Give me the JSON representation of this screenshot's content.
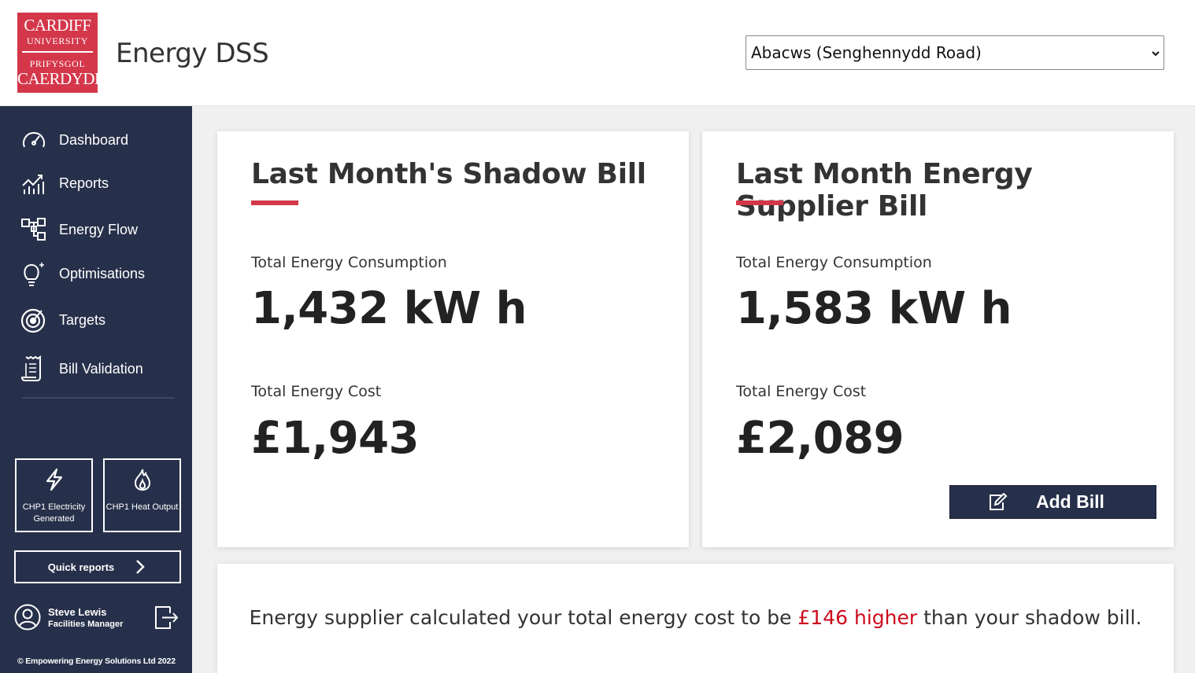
{
  "header": {
    "logo": {
      "line1": "CARDIFF",
      "line2": "UNIVERSITY",
      "line3": "PRIFYSGOL",
      "line4": "CAERDYDD",
      "color": "#d4374a"
    },
    "title": "Energy DSS",
    "building_select": {
      "value": "Abacws (Senghennydd Road)"
    }
  },
  "sidebar": {
    "background": "#27304a",
    "items": [
      {
        "label": "Dashboard",
        "icon": "gauge-icon"
      },
      {
        "label": "Reports",
        "icon": "chart-icon"
      },
      {
        "label": "Energy Flow",
        "icon": "flow-icon"
      },
      {
        "label": "Optimisations",
        "icon": "bulb-icon"
      },
      {
        "label": "Targets",
        "icon": "target-icon"
      },
      {
        "label": "Bill Validation",
        "icon": "receipt-icon"
      }
    ],
    "quick_tiles": [
      {
        "label": "CHP1 Electricity Generated",
        "icon": "lightning-icon"
      },
      {
        "label": "CHP1 Heat Output",
        "icon": "flame-icon"
      }
    ],
    "quick_reports_label": "Quick reports",
    "user": {
      "name": "Steve Lewis",
      "role": "Facilities Manager"
    },
    "copyright": "© Empowering Energy Solutions Ltd 2022"
  },
  "shadow_bill": {
    "title": "Last Month's Shadow Bill",
    "consumption_label": "Total Energy Consumption",
    "consumption_value": "1,432 kW h",
    "cost_label": "Total Energy Cost",
    "cost_value": "£1,943"
  },
  "supplier_bill": {
    "title": "Last Month Energy Supplier Bill",
    "consumption_label": "Total Energy Consumption",
    "consumption_value": "1,583 kW h",
    "cost_label": "Total Energy Cost",
    "cost_value": "£2,089",
    "add_bill_label": "Add Bill"
  },
  "summary": {
    "prefix": "Energy supplier calculated your total energy cost to be ",
    "highlight": "£146 higher",
    "suffix": " than your shadow bill.",
    "highlight_color": "#cc0b1e"
  },
  "accent_color": "#d4374a"
}
